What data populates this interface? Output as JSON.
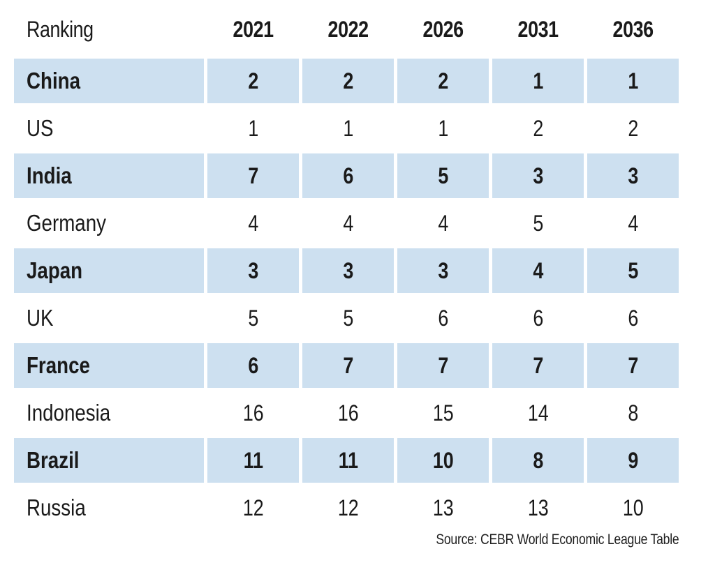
{
  "chart_data": {
    "type": "table",
    "title": "Ranking",
    "columns": [
      "Ranking",
      "2021",
      "2022",
      "2026",
      "2031",
      "2036"
    ],
    "rows": [
      [
        "China",
        2,
        2,
        2,
        1,
        1
      ],
      [
        "US",
        1,
        1,
        1,
        2,
        2
      ],
      [
        "India",
        7,
        6,
        5,
        3,
        3
      ],
      [
        "Germany",
        4,
        4,
        4,
        5,
        4
      ],
      [
        "Japan",
        3,
        3,
        3,
        4,
        5
      ],
      [
        "UK",
        5,
        5,
        6,
        6,
        6
      ],
      [
        "France",
        6,
        7,
        7,
        7,
        7
      ],
      [
        "Indonesia",
        16,
        16,
        15,
        14,
        8
      ],
      [
        "Brazil",
        11,
        11,
        10,
        8,
        9
      ],
      [
        "Russia",
        12,
        12,
        13,
        13,
        10
      ]
    ],
    "source": "Source: CEBR World Economic League Table",
    "legend_position": "none",
    "grid": false,
    "layout_hints": {
      "striping": "alternate data rows shaded, starting with first row",
      "highlight_color": "#cde0f0",
      "text_color": "#1a1a1a",
      "background_color": "#ffffff"
    }
  }
}
